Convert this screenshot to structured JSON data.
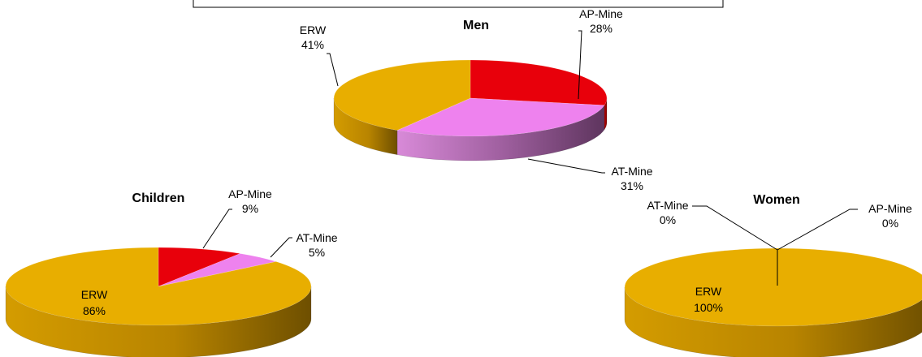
{
  "chart_data": [
    {
      "type": "pie",
      "title": "Men",
      "slices": [
        {
          "label": "AP-Mine",
          "value": 28,
          "display": "28%",
          "color": "#E8000B"
        },
        {
          "label": "AT-Mine",
          "value": 31,
          "display": "31%",
          "color": "#EE82EE"
        },
        {
          "label": "ERW",
          "value": 41,
          "display": "41%",
          "color": "#E8AE00"
        }
      ]
    },
    {
      "type": "pie",
      "title": "Children",
      "slices": [
        {
          "label": "AP-Mine",
          "value": 9,
          "display": "9%",
          "color": "#E8000B"
        },
        {
          "label": "AT-Mine",
          "value": 5,
          "display": "5%",
          "color": "#EE82EE"
        },
        {
          "label": "ERW",
          "value": 86,
          "display": "86%",
          "color": "#E8AE00"
        }
      ]
    },
    {
      "type": "pie",
      "title": "Women",
      "slices": [
        {
          "label": "AP-Mine",
          "value": 0,
          "display": "0%",
          "color": "#E8000B"
        },
        {
          "label": "AT-Mine",
          "value": 0,
          "display": "0%",
          "color": "#EE82EE"
        },
        {
          "label": "ERW",
          "value": 100,
          "display": "100%",
          "color": "#E8AE00"
        }
      ]
    }
  ]
}
